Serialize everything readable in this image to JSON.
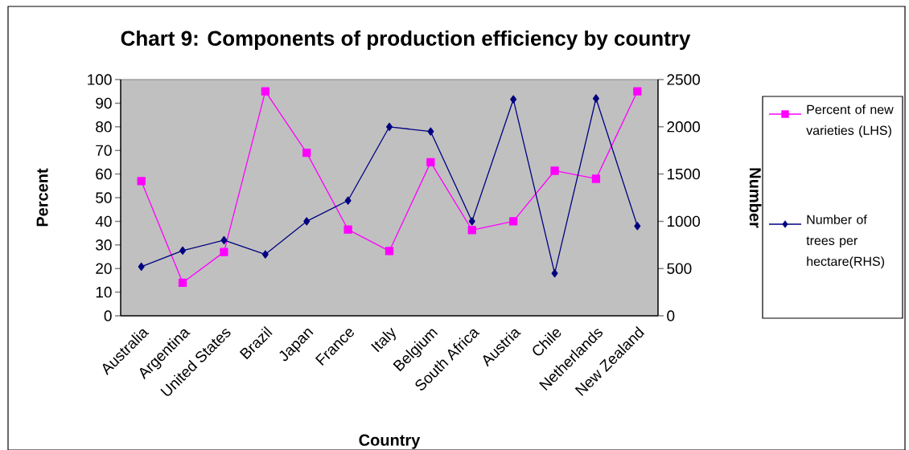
{
  "chart_data": {
    "type": "line",
    "title": "Chart 9: Components of production efficiency by country",
    "xlabel": "Country",
    "ylabel": "Percent",
    "y2label": "Number",
    "categories": [
      "Australia",
      "Argentina",
      "United States",
      "Brazil",
      "Japan",
      "France",
      "Italy",
      "Belgium",
      "South Africa",
      "Austria",
      "Chile",
      "Netherlands",
      "New Zealand"
    ],
    "series": [
      {
        "name": "Percent of new varieties (LHS)",
        "color": "#ff00ff",
        "marker": "square",
        "values": [
          57,
          14,
          27,
          95,
          69,
          36.5,
          27.4,
          65,
          36.3,
          40,
          61.4,
          58,
          95
        ]
      },
      {
        "name": "Number of trees per hectare(RHS)",
        "color": "#000080",
        "marker": "diamond",
        "axis": "y2",
        "values": [
          520,
          690,
          800,
          650,
          1000,
          1220,
          2000,
          1950,
          1000,
          2290,
          450,
          2300,
          950
        ]
      }
    ],
    "ylim": [
      0,
      100
    ],
    "yticks": [
      0,
      10,
      20,
      30,
      40,
      50,
      60,
      70,
      80,
      90,
      100
    ],
    "y2lim": [
      0,
      2500
    ],
    "y2ticks": [
      0,
      500,
      1000,
      1500,
      2000,
      2500
    ],
    "legend": "right"
  }
}
